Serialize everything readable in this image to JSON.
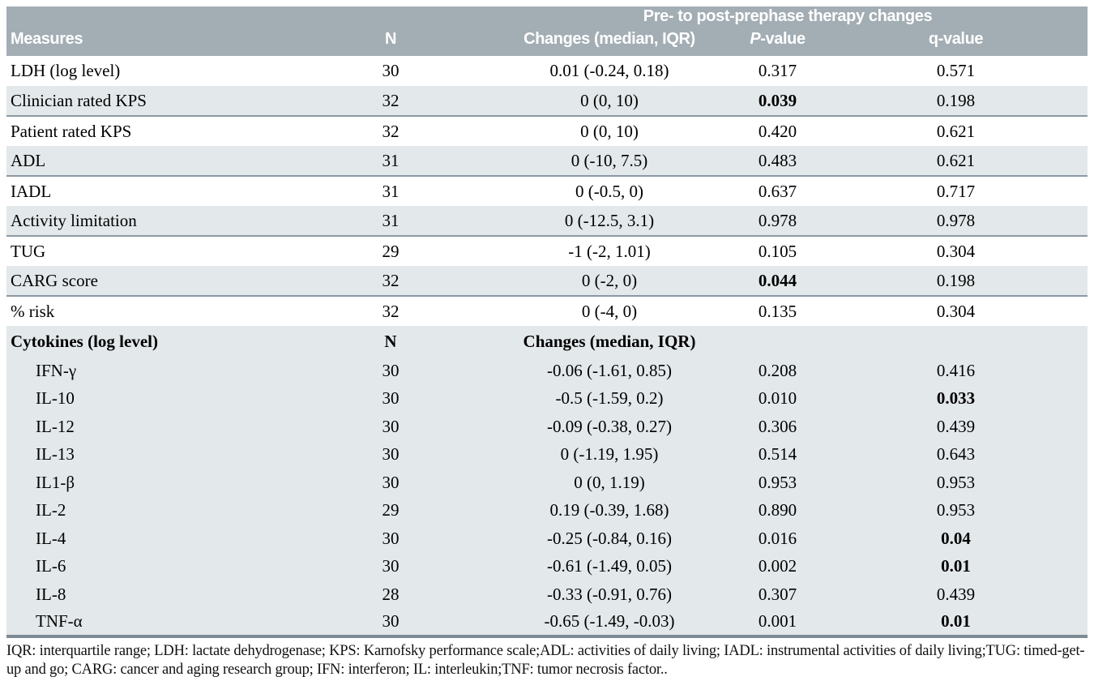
{
  "header": {
    "span_label": "Pre- to post-prephase therapy changes",
    "measures_label": "Measures",
    "n_label": "N",
    "changes_label": "Changes (median, IQR)",
    "pvalue_prefix": "P",
    "pvalue_suffix": "-value",
    "qvalue_label": "q-value"
  },
  "colors": {
    "header_bg": "#a3adb4",
    "header_text": "#ffffff",
    "row_shade": "#e3e8ea",
    "row_divider": "#8d99a2",
    "section_end_border": "#7e8b94"
  },
  "measures_rows": [
    {
      "label": "LDH (log level)",
      "n": "30",
      "changes": "0.01 (-0.24, 0.18)",
      "p": "0.317",
      "q": "0.571",
      "p_bold": false,
      "q_bold": false,
      "shaded": false
    },
    {
      "label": "Clinician rated KPS",
      "n": "32",
      "changes": "0 (0, 10)",
      "p": "0.039",
      "q": "0.198",
      "p_bold": true,
      "q_bold": false,
      "shaded": true
    },
    {
      "label": "Patient rated KPS",
      "n": "32",
      "changes": "0 (0, 10)",
      "p": "0.420",
      "q": "0.621",
      "p_bold": false,
      "q_bold": false,
      "shaded": false
    },
    {
      "label": "ADL",
      "n": "31",
      "changes": "0 (-10, 7.5)",
      "p": "0.483",
      "q": "0.621",
      "p_bold": false,
      "q_bold": false,
      "shaded": true
    },
    {
      "label": "IADL",
      "n": "31",
      "changes": "0 (-0.5, 0)",
      "p": "0.637",
      "q": "0.717",
      "p_bold": false,
      "q_bold": false,
      "shaded": false
    },
    {
      "label": "Activity limitation",
      "n": "31",
      "changes": "0 (-12.5, 3.1)",
      "p": "0.978",
      "q": "0.978",
      "p_bold": false,
      "q_bold": false,
      "shaded": true
    },
    {
      "label": "TUG",
      "n": "29",
      "changes": "-1 (-2, 1.01)",
      "p": "0.105",
      "q": "0.304",
      "p_bold": false,
      "q_bold": false,
      "shaded": false
    },
    {
      "label": "CARG score",
      "n": "32",
      "changes": "0 (-2, 0)",
      "p": "0.044",
      "q": "0.198",
      "p_bold": true,
      "q_bold": false,
      "shaded": true
    },
    {
      "label": "% risk",
      "n": "32",
      "changes": "0 (-4, 0)",
      "p": "0.135",
      "q": "0.304",
      "p_bold": false,
      "q_bold": false,
      "shaded": false
    }
  ],
  "cytokines": {
    "section_label": "Cytokines (log level)",
    "n_label": "N",
    "changes_label": "Changes (median, IQR)",
    "rows": [
      {
        "label": "IFN-γ",
        "n": "30",
        "changes": "-0.06 (-1.61, 0.85)",
        "p": "0.208",
        "q": "0.416",
        "p_bold": false,
        "q_bold": false
      },
      {
        "label": "IL-10",
        "n": "30",
        "changes": "-0.5 (-1.59, 0.2)",
        "p": "0.010",
        "q": "0.033",
        "p_bold": false,
        "q_bold": true
      },
      {
        "label": "IL-12",
        "n": "30",
        "changes": "-0.09 (-0.38, 0.27)",
        "p": "0.306",
        "q": "0.439",
        "p_bold": false,
        "q_bold": false
      },
      {
        "label": "IL-13",
        "n": "30",
        "changes": "0 (-1.19, 1.95)",
        "p": "0.514",
        "q": "0.643",
        "p_bold": false,
        "q_bold": false
      },
      {
        "label": "IL1-β",
        "n": "30",
        "changes": "0 (0, 1.19)",
        "p": "0.953",
        "q": "0.953",
        "p_bold": false,
        "q_bold": false
      },
      {
        "label": "IL-2",
        "n": "29",
        "changes": "0.19 (-0.39, 1.68)",
        "p": "0.890",
        "q": "0.953",
        "p_bold": false,
        "q_bold": false
      },
      {
        "label": "IL-4",
        "n": "30",
        "changes": "-0.25 (-0.84, 0.16)",
        "p": "0.016",
        "q": "0.04",
        "p_bold": false,
        "q_bold": true
      },
      {
        "label": "IL-6",
        "n": "30",
        "changes": "-0.61 (-1.49, 0.05)",
        "p": "0.002",
        "q": "0.01",
        "p_bold": false,
        "q_bold": true
      },
      {
        "label": "IL-8",
        "n": "28",
        "changes": "-0.33 (-0.91, 0.76)",
        "p": "0.307",
        "q": "0.439",
        "p_bold": false,
        "q_bold": false
      },
      {
        "label": "TNF-α",
        "n": "30",
        "changes": "-0.65 (-1.49, -0.03)",
        "p": "0.001",
        "q": "0.01",
        "p_bold": false,
        "q_bold": true
      }
    ]
  },
  "footnote": "IQR: interquartile range; LDH: lactate dehydrogenase; KPS: Karnofsky performance scale;ADL: activities of daily living; IADL: instrumental activities of daily living;TUG: timed-get-up and go; CARG: cancer and aging research group; IFN: interferon; IL: interleukin;TNF: tumor necrosis factor.."
}
